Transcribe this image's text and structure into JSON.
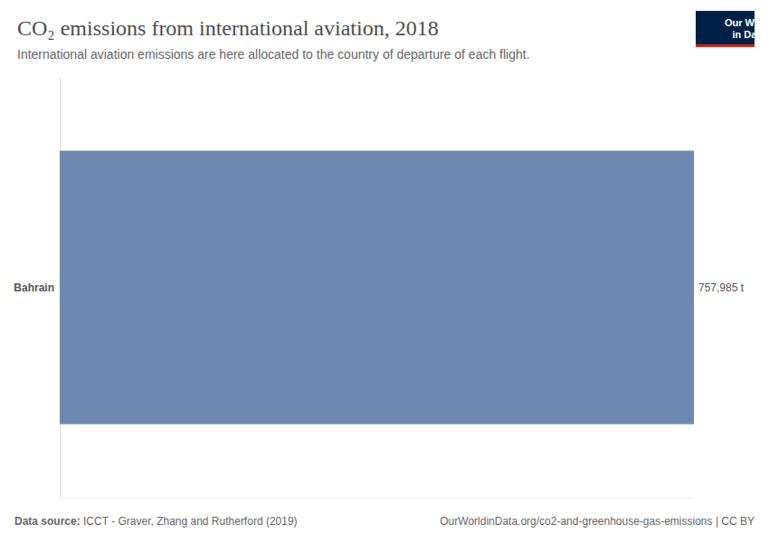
{
  "chart_data": {
    "type": "bar",
    "orientation": "horizontal",
    "title": "CO₂ emissions from international aviation, 2018",
    "subtitle": "International aviation emissions are here allocated to the country of departure of each flight.",
    "categories": [
      "Bahrain"
    ],
    "values": [
      757985
    ],
    "value_labels": [
      "757,985 t"
    ],
    "data_labels": true,
    "color": "#6f88b0",
    "xlim": [
      0,
      757985
    ],
    "grid": false,
    "tick_labels": "y",
    "source_label": "Data source:",
    "source": "ICCT - Graver, Zhang and Rutherford (2019)",
    "footer_right": "OurWorldinData.org/co2-and-greenhouse-gas-emissions | CC BY",
    "logo_lines": [
      "Our World",
      "in Data"
    ]
  }
}
